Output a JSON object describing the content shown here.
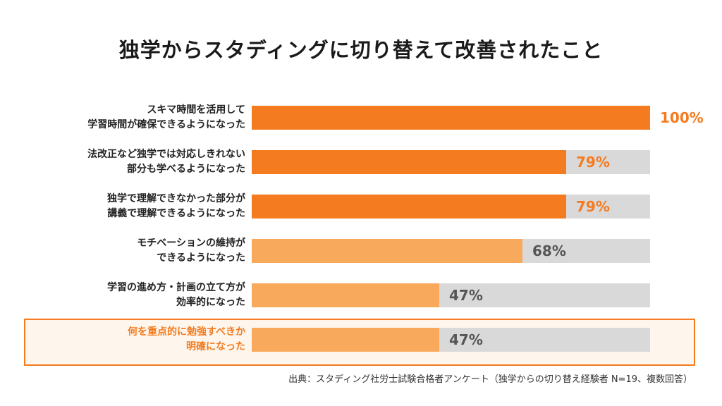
{
  "chart_data": {
    "type": "bar",
    "title": "独学からスタディングに切り替えて改善されたこと",
    "orientation": "horizontal",
    "xlim": [
      0,
      100
    ],
    "categories": [
      [
        "スキマ時間を活用して",
        "学習時間が確保できるようになった"
      ],
      [
        "法改正など独学では対応しきれない",
        "部分も学べるようになった"
      ],
      [
        "独学で理解できなかった部分が",
        "講義で理解できるようになった"
      ],
      [
        "モチベーションの維持が",
        "できるようになった"
      ],
      [
        "学習の進め方・計画の立て方が",
        "効率的になった"
      ],
      [
        "何を重点的に勉強すべきか",
        "明確になった"
      ]
    ],
    "values": [
      100,
      79,
      79,
      68,
      47,
      47
    ],
    "value_labels": [
      "100%",
      "79%",
      "79%",
      "68%",
      "47%",
      "47%"
    ],
    "highlighted_index": 5,
    "source": "出典：スタディング社労士試験合格者アンケート（独学からの切り替え経験者 N=19、複数回答）"
  },
  "colors": {
    "dark_orange": "#f47b20",
    "light_orange": "#f9a95c",
    "track": "#d9d9d9",
    "label_dark": "#555555"
  }
}
